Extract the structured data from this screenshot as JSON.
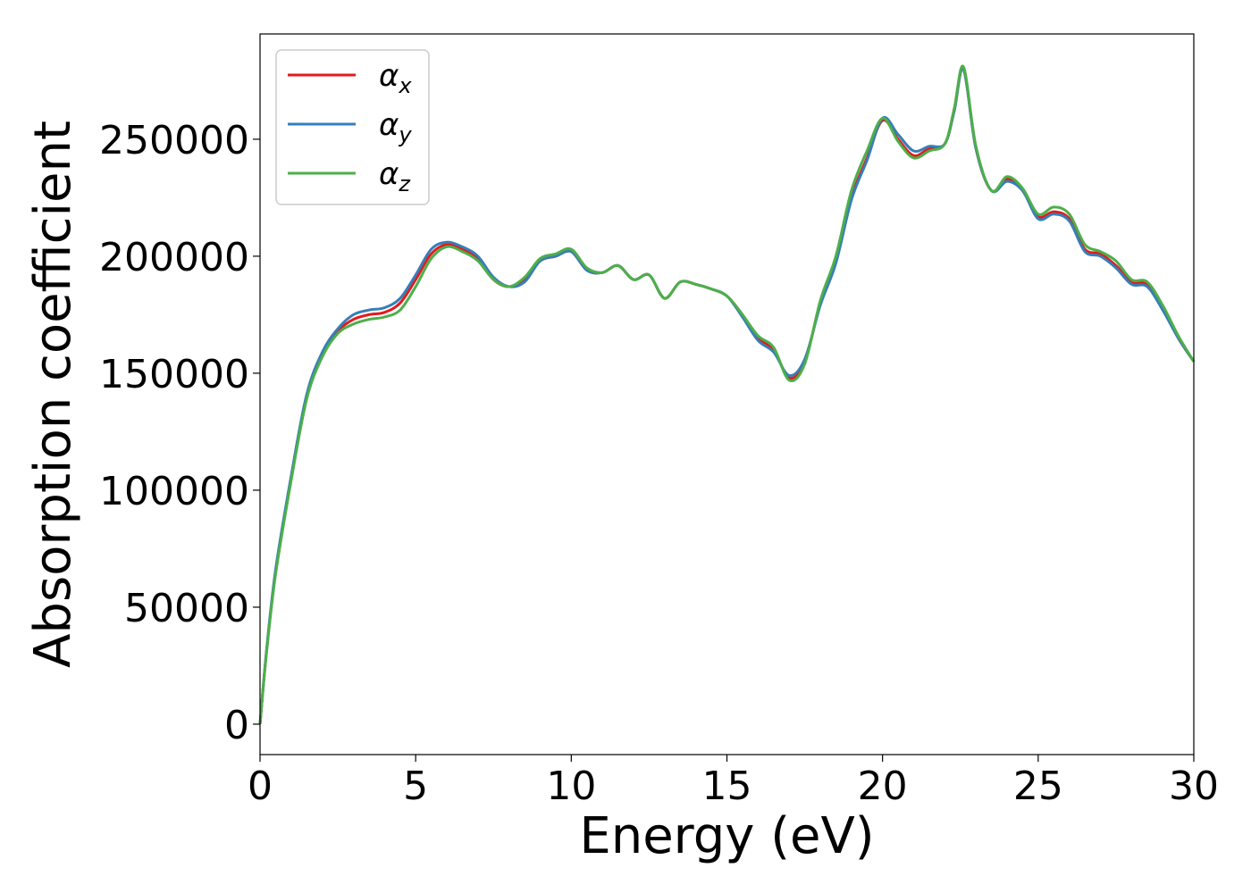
{
  "chart_data": {
    "type": "line",
    "title": "",
    "xlabel": "Energy (eV)",
    "ylabel": "Absorption coefficient",
    "xlim": [
      0,
      30
    ],
    "ylim": [
      -13000,
      295000
    ],
    "xticks": [
      0,
      5,
      10,
      15,
      20,
      25,
      30
    ],
    "yticks": [
      0,
      50000,
      100000,
      150000,
      200000,
      250000
    ],
    "grid": false,
    "legend_position": "top-left",
    "series": [
      {
        "name": "αx",
        "symbol": "α",
        "sub": "x",
        "color": "#e41a1c",
        "x": [
          0,
          0.2,
          0.5,
          1.0,
          1.5,
          2.0,
          2.5,
          3.0,
          3.5,
          4.0,
          4.5,
          5.0,
          5.5,
          6.0,
          6.5,
          7.0,
          7.5,
          8.0,
          8.5,
          9.0,
          9.5,
          10.0,
          10.5,
          11.0,
          11.5,
          12.0,
          12.5,
          13.0,
          13.5,
          14.0,
          14.5,
          15.0,
          15.5,
          16.0,
          16.5,
          17.0,
          17.5,
          18.0,
          18.5,
          19.0,
          19.5,
          20.0,
          20.5,
          21.0,
          21.5,
          22.0,
          22.3,
          22.6,
          23.0,
          23.5,
          24.0,
          24.5,
          25.0,
          25.5,
          26.0,
          26.5,
          27.0,
          27.5,
          28.0,
          28.5,
          29.0,
          29.5,
          30.0
        ],
        "y": [
          0,
          30000,
          65000,
          105000,
          140000,
          158000,
          168000,
          173000,
          175000,
          176000,
          180000,
          190000,
          201000,
          205000,
          203000,
          199000,
          190000,
          187000,
          190000,
          198000,
          200000,
          202000,
          194000,
          193000,
          196000,
          190000,
          192000,
          182000,
          189000,
          188000,
          186000,
          183000,
          175000,
          165000,
          160000,
          148000,
          155000,
          180000,
          198000,
          225000,
          242000,
          258000,
          250000,
          243000,
          246000,
          248000,
          262000,
          280000,
          246000,
          228000,
          233000,
          228000,
          217000,
          219000,
          216000,
          203000,
          201000,
          196000,
          189000,
          188000,
          178000,
          165000,
          155000
        ]
      },
      {
        "name": "αy",
        "symbol": "α",
        "sub": "y",
        "color": "#377eb8",
        "x": [
          0,
          0.2,
          0.5,
          1.0,
          1.5,
          2.0,
          2.5,
          3.0,
          3.5,
          4.0,
          4.5,
          5.0,
          5.5,
          6.0,
          6.5,
          7.0,
          7.5,
          8.0,
          8.5,
          9.0,
          9.5,
          10.0,
          10.5,
          11.0,
          11.5,
          12.0,
          12.5,
          13.0,
          13.5,
          14.0,
          14.5,
          15.0,
          15.5,
          16.0,
          16.5,
          17.0,
          17.5,
          18.0,
          18.5,
          19.0,
          19.5,
          20.0,
          20.5,
          21.0,
          21.5,
          22.0,
          22.3,
          22.6,
          23.0,
          23.5,
          24.0,
          24.5,
          25.0,
          25.5,
          26.0,
          26.5,
          27.0,
          27.5,
          28.0,
          28.5,
          29.0,
          29.5,
          30.0
        ],
        "y": [
          0,
          30500,
          66000,
          106000,
          141000,
          159000,
          169000,
          175000,
          177000,
          178000,
          182000,
          192000,
          203000,
          206000,
          204000,
          200000,
          191000,
          187000,
          189000,
          198000,
          200000,
          202000,
          194000,
          193000,
          196000,
          190000,
          192000,
          182000,
          189000,
          188000,
          186000,
          183000,
          174000,
          164000,
          159000,
          149000,
          156000,
          179000,
          197000,
          224000,
          241000,
          259000,
          252000,
          245000,
          247000,
          248000,
          262000,
          280000,
          246000,
          228000,
          232000,
          228000,
          216000,
          218000,
          215000,
          202000,
          200000,
          195000,
          188000,
          187000,
          177000,
          165000,
          155000
        ]
      },
      {
        "name": "αz",
        "symbol": "α",
        "sub": "z",
        "color": "#4daf4a",
        "x": [
          0,
          0.2,
          0.5,
          1.0,
          1.5,
          2.0,
          2.5,
          3.0,
          3.5,
          4.0,
          4.5,
          5.0,
          5.5,
          6.0,
          6.5,
          7.0,
          7.5,
          8.0,
          8.5,
          9.0,
          9.5,
          10.0,
          10.5,
          11.0,
          11.5,
          12.0,
          12.5,
          13.0,
          13.5,
          14.0,
          14.5,
          15.0,
          15.5,
          16.0,
          16.5,
          17.0,
          17.5,
          18.0,
          18.5,
          19.0,
          19.5,
          20.0,
          20.5,
          21.0,
          21.5,
          22.0,
          22.3,
          22.6,
          23.0,
          23.5,
          24.0,
          24.5,
          25.0,
          25.5,
          26.0,
          26.5,
          27.0,
          27.5,
          28.0,
          28.5,
          29.0,
          29.5,
          30.0
        ],
        "y": [
          0,
          29500,
          64000,
          104000,
          139000,
          157000,
          167000,
          171000,
          173000,
          174000,
          177000,
          187000,
          199000,
          204000,
          202000,
          198000,
          190000,
          187000,
          191000,
          199000,
          201000,
          203000,
          195000,
          193000,
          196000,
          190000,
          192000,
          182000,
          189000,
          188000,
          186000,
          183000,
          175000,
          166000,
          161000,
          147000,
          154000,
          181000,
          200000,
          228000,
          245000,
          259000,
          249000,
          242000,
          245000,
          248000,
          263000,
          281000,
          247000,
          228000,
          234000,
          229000,
          218000,
          221000,
          218000,
          205000,
          202000,
          198000,
          190000,
          189000,
          179000,
          166000,
          155000
        ]
      }
    ]
  }
}
